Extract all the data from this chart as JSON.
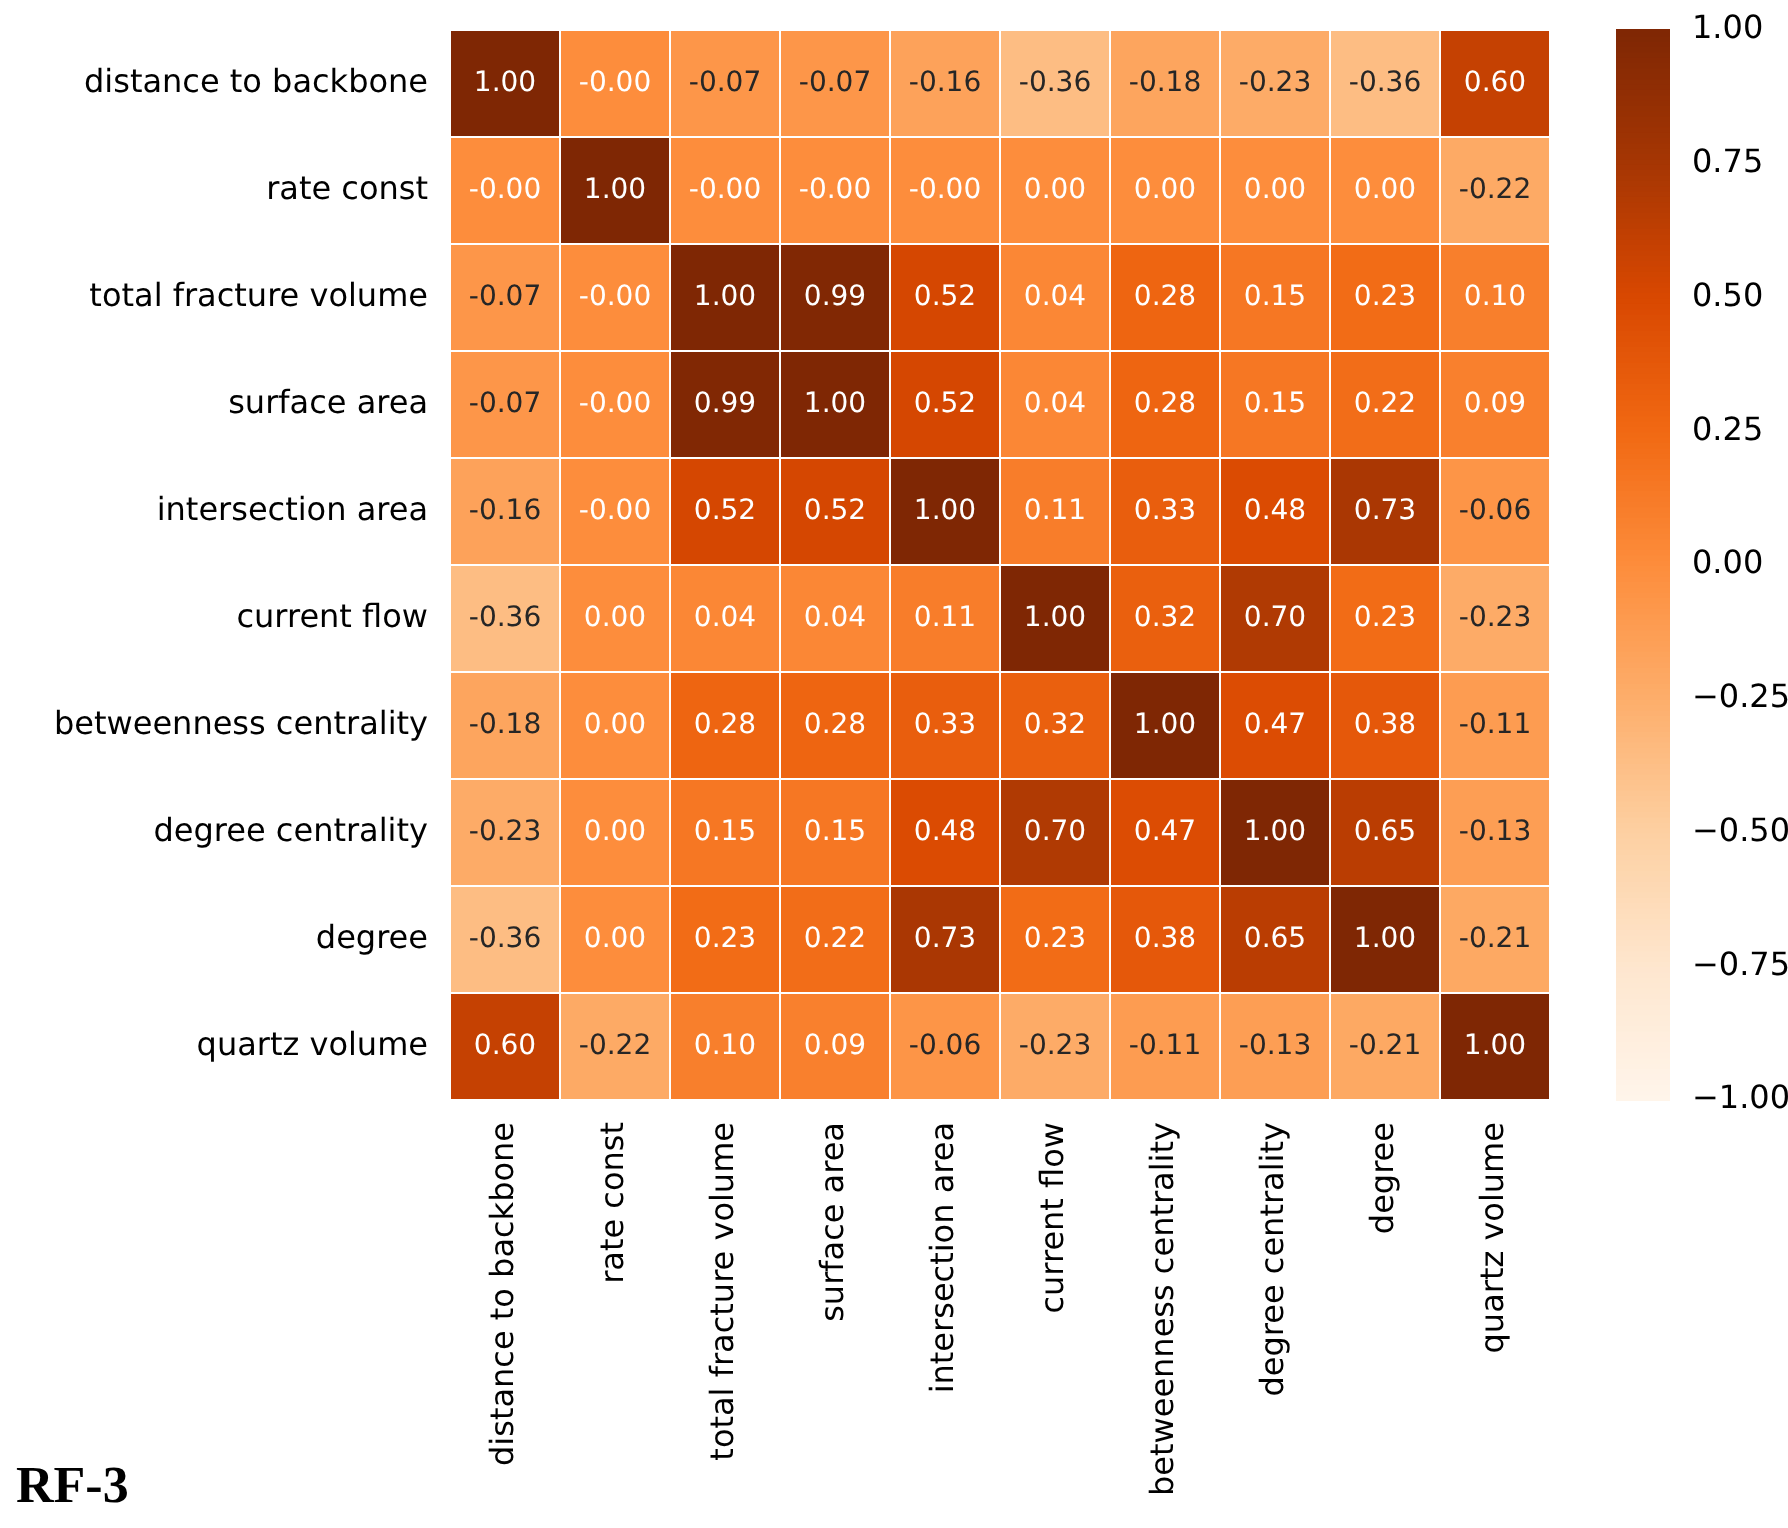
{
  "chart_data": {
    "type": "heatmap",
    "title": "RF-3",
    "categories": [
      "distance to backbone",
      "rate const",
      "total fracture volume",
      "surface area",
      "intersection area",
      "current flow",
      "betweenness centrality",
      "degree centrality",
      "degree",
      "quartz volume"
    ],
    "y_categories": [
      "distance to backbone",
      "rate const",
      "total fracture volume",
      "surface area",
      "intersection area",
      "current flow",
      "betweenness centrality",
      "degree centrality",
      "degree",
      "quartz volume"
    ],
    "cells": [
      [
        1,
        0,
        -0.07,
        -0.07,
        -0.16,
        -0.36,
        -0.18,
        -0.23,
        -0.36,
        0.6
      ],
      [
        0,
        1,
        0,
        0,
        0,
        0,
        0,
        0,
        0,
        -0.22
      ],
      [
        -0.07,
        0,
        1,
        0.99,
        0.52,
        0.04,
        0.28,
        0.15,
        0.23,
        0.1
      ],
      [
        -0.07,
        0,
        0.99,
        1,
        0.52,
        0.04,
        0.28,
        0.15,
        0.22,
        0.09
      ],
      [
        -0.16,
        0,
        0.52,
        0.52,
        1,
        0.11,
        0.33,
        0.48,
        0.73,
        -0.06
      ],
      [
        -0.36,
        0,
        0.04,
        0.04,
        0.11,
        1,
        0.32,
        0.7,
        0.23,
        -0.23
      ],
      [
        -0.18,
        0,
        0.28,
        0.28,
        0.33,
        0.32,
        1,
        0.47,
        0.38,
        -0.11
      ],
      [
        -0.23,
        0,
        0.15,
        0.15,
        0.48,
        0.7,
        0.47,
        1,
        0.65,
        -0.13
      ],
      [
        -0.36,
        0,
        0.23,
        0.22,
        0.73,
        0.23,
        0.38,
        0.65,
        1,
        -0.21
      ],
      [
        0.6,
        -0.22,
        0.1,
        0.09,
        -0.06,
        -0.23,
        -0.11,
        -0.13,
        -0.21,
        1
      ]
    ],
    "cell_labels": [
      [
        "1.00",
        "-0.00",
        "-0.07",
        "-0.07",
        "-0.16",
        "-0.36",
        "-0.18",
        "-0.23",
        "-0.36",
        "0.60"
      ],
      [
        "-0.00",
        "1.00",
        "-0.00",
        "-0.00",
        "-0.00",
        "0.00",
        "0.00",
        "0.00",
        "0.00",
        "-0.22"
      ],
      [
        "-0.07",
        "-0.00",
        "1.00",
        "0.99",
        "0.52",
        "0.04",
        "0.28",
        "0.15",
        "0.23",
        "0.10"
      ],
      [
        "-0.07",
        "-0.00",
        "0.99",
        "1.00",
        "0.52",
        "0.04",
        "0.28",
        "0.15",
        "0.22",
        "0.09"
      ],
      [
        "-0.16",
        "-0.00",
        "0.52",
        "0.52",
        "1.00",
        "0.11",
        "0.33",
        "0.48",
        "0.73",
        "-0.06"
      ],
      [
        "-0.36",
        "0.00",
        "0.04",
        "0.04",
        "0.11",
        "1.00",
        "0.32",
        "0.70",
        "0.23",
        "-0.23"
      ],
      [
        "-0.18",
        "0.00",
        "0.28",
        "0.28",
        "0.33",
        "0.32",
        "1.00",
        "0.47",
        "0.38",
        "-0.11"
      ],
      [
        "-0.23",
        "0.00",
        "0.15",
        "0.15",
        "0.48",
        "0.70",
        "0.47",
        "1.00",
        "0.65",
        "-0.13"
      ],
      [
        "-0.36",
        "0.00",
        "0.23",
        "0.22",
        "0.73",
        "0.23",
        "0.38",
        "0.65",
        "1.00",
        "-0.21"
      ],
      [
        "0.60",
        "-0.22",
        "0.10",
        "0.09",
        "-0.06",
        "-0.23",
        "-0.11",
        "-0.13",
        "-0.21",
        "1.00"
      ]
    ],
    "clim": [
      -1,
      1
    ],
    "cticks": [
      {
        "value": -1,
        "label": "−1.00"
      },
      {
        "value": -0.75,
        "label": "−0.75"
      },
      {
        "value": -0.5,
        "label": "−0.50"
      },
      {
        "value": -0.25,
        "label": "−0.25"
      },
      {
        "value": 0,
        "label": "0.00"
      },
      {
        "value": 0.25,
        "label": "0.25"
      },
      {
        "value": 0.5,
        "label": "0.50"
      },
      {
        "value": 0.75,
        "label": "0.75"
      },
      {
        "value": 1,
        "label": "1.00"
      }
    ]
  }
}
